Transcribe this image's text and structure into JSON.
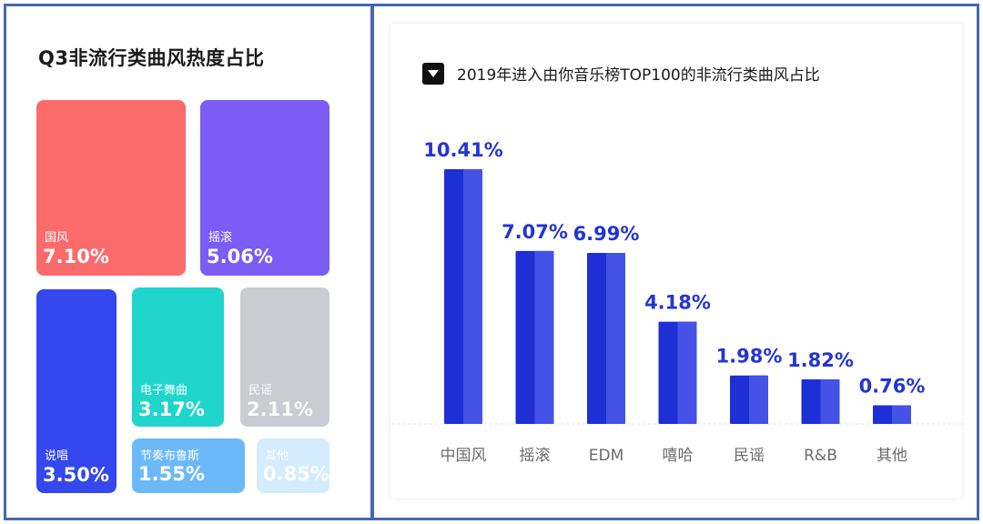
{
  "chart_data": [
    {
      "type": "treemap",
      "title": "Q3非流行类曲风热度占比",
      "items": [
        {
          "name": "国风",
          "label": "7.10%",
          "value": 7.1,
          "color": "#fb6b6b"
        },
        {
          "name": "摇滚",
          "label": "5.06%",
          "value": 5.06,
          "color": "#7b5cf4"
        },
        {
          "name": "说唱",
          "label": "3.50%",
          "value": 3.5,
          "color": "#3547ee"
        },
        {
          "name": "电子舞曲",
          "label": "3.17%",
          "value": 3.17,
          "color": "#1fd5cc"
        },
        {
          "name": "民谣",
          "label": "2.11%",
          "value": 2.11,
          "color": "#c9ccd2"
        },
        {
          "name": "节奏布鲁斯",
          "label": "1.55%",
          "value": 1.55,
          "color": "#6cb9fa"
        },
        {
          "name": "其他",
          "label": "0.85%",
          "value": 0.85,
          "color": "#d4ecfd"
        }
      ]
    },
    {
      "type": "bar",
      "title": "2019年进入由你音乐榜TOP100的非流行类曲风占比",
      "categories": [
        "中国风",
        "摇滚",
        "EDM",
        "嘻哈",
        "民谣",
        "R&B",
        "其他"
      ],
      "values": [
        10.41,
        7.07,
        6.99,
        4.18,
        1.98,
        1.82,
        0.76
      ],
      "value_labels": [
        "10.41%",
        "7.07%",
        "6.99%",
        "4.18%",
        "1.98%",
        "1.82%",
        "0.76%"
      ],
      "ylim": [
        0,
        10.41
      ],
      "grid": false,
      "colors": {
        "bar_dark": "#1f2fd6",
        "bar_light": "#4452e6",
        "label": "#2335d2",
        "baseline": "#dfe3ee"
      }
    }
  ]
}
